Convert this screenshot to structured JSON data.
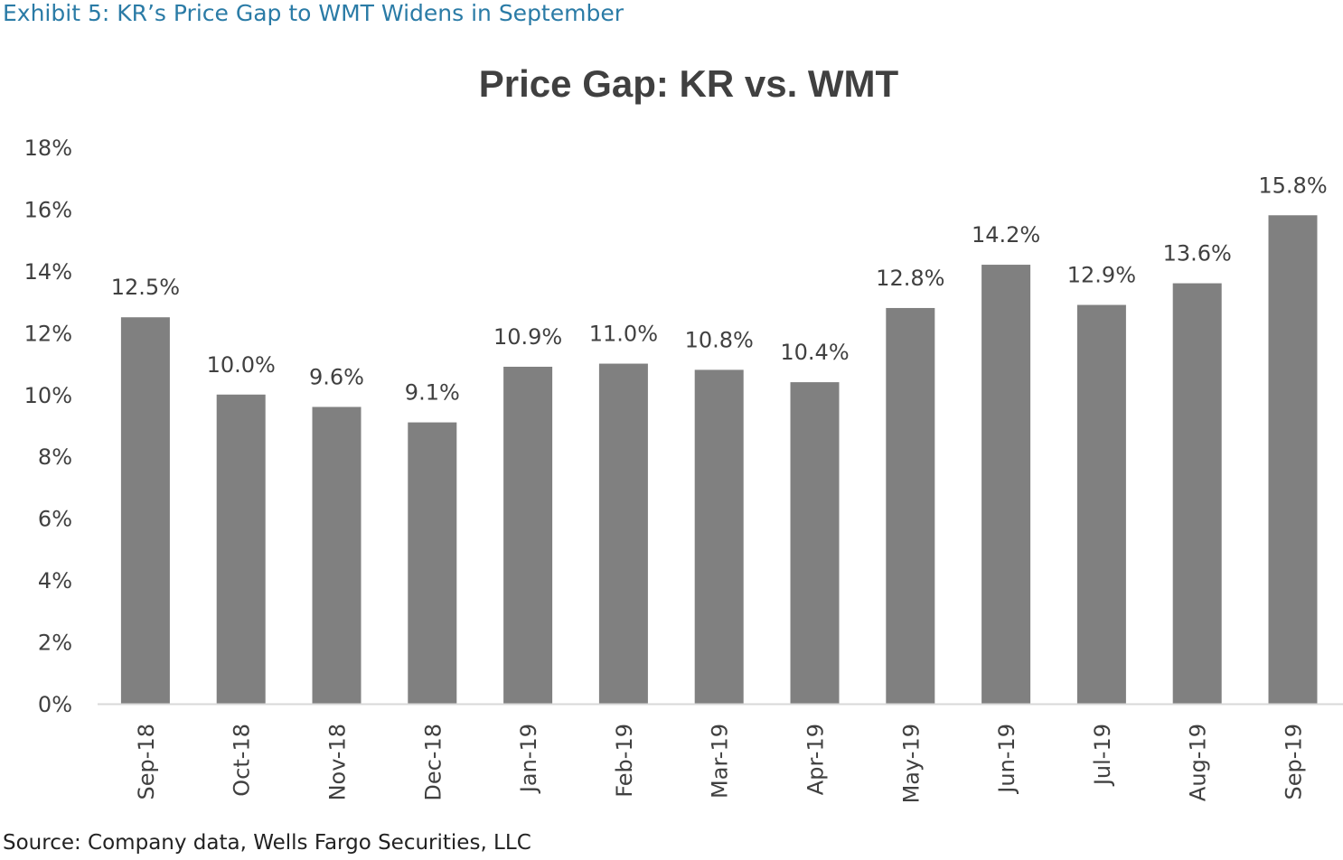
{
  "exhibit_title": "Exhibit 5: KR’s Price Gap to WMT Widens in September",
  "source_note": "Source: Company data, Wells Fargo Securities, LLC",
  "colors": {
    "bar": "#808080",
    "exhibit_title": "#2a7ba6",
    "text": "#404040",
    "axis": "#d9d9d9"
  },
  "chart_data": {
    "type": "bar",
    "title": "Price Gap: KR vs. WMT",
    "xlabel": "",
    "ylabel": "",
    "categories": [
      "Sep-18",
      "Oct-18",
      "Nov-18",
      "Dec-18",
      "Jan-19",
      "Feb-19",
      "Mar-19",
      "Apr-19",
      "May-19",
      "Jun-19",
      "Jul-19",
      "Aug-19",
      "Sep-19"
    ],
    "values": [
      12.5,
      10.0,
      9.6,
      9.1,
      10.9,
      11.0,
      10.8,
      10.4,
      12.8,
      14.2,
      12.9,
      13.6,
      15.8
    ],
    "data_labels": [
      "12.5%",
      "10.0%",
      "9.6%",
      "9.1%",
      "10.9%",
      "11.0%",
      "10.8%",
      "10.4%",
      "12.8%",
      "14.2%",
      "12.9%",
      "13.6%",
      "15.8%"
    ],
    "y_ticks": [
      0,
      2,
      4,
      6,
      8,
      10,
      12,
      14,
      16,
      18
    ],
    "y_tick_labels": [
      "0%",
      "2%",
      "4%",
      "6%",
      "8%",
      "10%",
      "12%",
      "14%",
      "16%",
      "18%"
    ],
    "ylim": [
      0,
      18
    ],
    "grid": false,
    "legend": "none"
  }
}
